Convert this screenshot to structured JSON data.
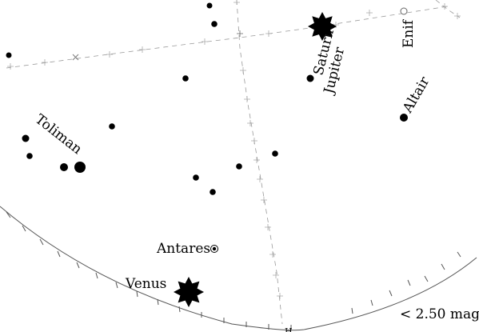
{
  "labels": {
    "toliman": "Toliman",
    "antares": "Antares",
    "venus": "Venus",
    "saturn": "Saturn",
    "jupiter": "Jupiter",
    "altair": "Altair",
    "enif": "Enif",
    "horizon_mark": "H"
  },
  "magnitude_limit": "< 2.50 mag"
}
